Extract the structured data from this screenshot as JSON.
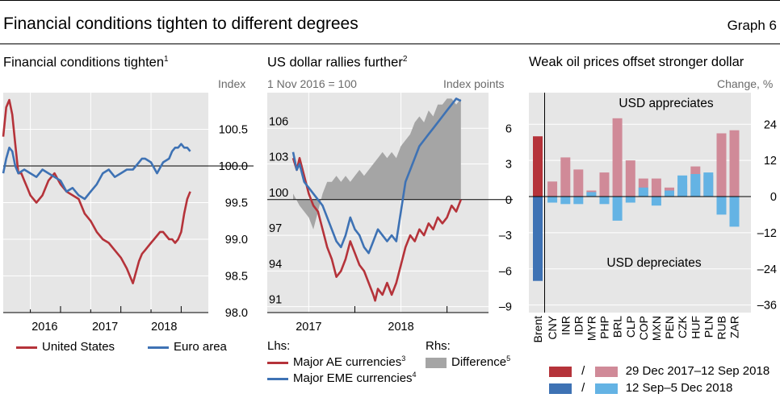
{
  "header": {
    "title": "Financial conditions tighten to different degrees",
    "graph_no": "Graph 6"
  },
  "colors": {
    "red": "#b5333a",
    "blue": "#3e72b4",
    "pink": "#d08a98",
    "lightblue": "#64b3e4",
    "grey": "#a5a5a5",
    "bg": "#e6e6e6"
  },
  "chart_data": [
    {
      "type": "line",
      "title": "Financial conditions tighten",
      "title_note": "1",
      "unit_label": "Index",
      "x_ticks": [
        "2016",
        "2017",
        "2018"
      ],
      "y_ticks": [
        "100.5",
        "100.0",
        "99.5",
        "99.0",
        "98.5",
        "98.0"
      ],
      "y_tick_values": [
        100.5,
        100.0,
        99.5,
        99.0,
        98.5,
        98.0
      ],
      "ylim": [
        98.0,
        101.0
      ],
      "xlim": [
        2015.55,
        2018.95
      ],
      "series": [
        {
          "name": "United States",
          "color": "#b5333a",
          "x": [
            2015.55,
            2015.6,
            2015.65,
            2015.7,
            2015.75,
            2015.8,
            2015.85,
            2015.9,
            2015.95,
            2016.0,
            2016.1,
            2016.2,
            2016.3,
            2016.4,
            2016.5,
            2016.55,
            2016.6,
            2016.7,
            2016.8,
            2016.9,
            2017.0,
            2017.1,
            2017.2,
            2017.3,
            2017.4,
            2017.5,
            2017.6,
            2017.7,
            2017.8,
            2017.85,
            2017.9,
            2017.95,
            2018.0,
            2018.05,
            2018.1,
            2018.15,
            2018.2,
            2018.25,
            2018.3,
            2018.35,
            2018.4,
            2018.45,
            2018.5,
            2018.55,
            2018.6,
            2018.65
          ],
          "values": [
            100.4,
            100.8,
            100.9,
            100.7,
            100.3,
            99.9,
            99.9,
            99.8,
            99.7,
            99.6,
            99.5,
            99.6,
            99.8,
            99.9,
            99.75,
            99.7,
            99.65,
            99.6,
            99.55,
            99.35,
            99.25,
            99.1,
            99.0,
            98.95,
            98.85,
            98.75,
            98.6,
            98.4,
            98.7,
            98.8,
            98.85,
            98.9,
            98.95,
            99.0,
            99.05,
            99.1,
            99.1,
            99.05,
            99.0,
            99.0,
            98.95,
            99.0,
            99.1,
            99.35,
            99.55,
            99.65
          ]
        },
        {
          "name": "Euro area",
          "color": "#3e72b4",
          "x": [
            2015.55,
            2015.6,
            2015.65,
            2015.7,
            2015.75,
            2015.8,
            2015.9,
            2016.0,
            2016.1,
            2016.2,
            2016.3,
            2016.4,
            2016.5,
            2016.6,
            2016.7,
            2016.8,
            2016.9,
            2017.0,
            2017.1,
            2017.2,
            2017.3,
            2017.4,
            2017.5,
            2017.6,
            2017.7,
            2017.8,
            2017.85,
            2017.9,
            2018.0,
            2018.1,
            2018.2,
            2018.3,
            2018.35,
            2018.4,
            2018.45,
            2018.5,
            2018.55,
            2018.6,
            2018.65
          ],
          "values": [
            99.9,
            100.1,
            100.25,
            100.2,
            100.0,
            99.9,
            99.95,
            99.9,
            99.85,
            99.95,
            99.9,
            99.85,
            99.8,
            99.65,
            99.7,
            99.6,
            99.55,
            99.65,
            99.75,
            99.9,
            99.95,
            99.85,
            99.9,
            99.95,
            99.95,
            100.05,
            100.1,
            100.1,
            100.05,
            99.9,
            100.05,
            100.1,
            100.2,
            100.25,
            100.25,
            100.3,
            100.25,
            100.25,
            100.2
          ]
        }
      ]
    },
    {
      "type": "line",
      "title": "US dollar rallies further",
      "title_note": "2",
      "base_label": "1 Nov 2016 = 100",
      "unit_label": "Index points",
      "x_ticks": [
        "2017",
        "2018"
      ],
      "y_left_ticks": [
        "106",
        "103",
        "100",
        "97",
        "94",
        "91"
      ],
      "y_left_values": [
        106,
        103,
        100,
        97,
        94,
        91
      ],
      "y_right_ticks": [
        "6",
        "3",
        "0",
        "–3",
        "–6",
        "–9"
      ],
      "y_right_values": [
        6,
        3,
        0,
        -3,
        -6,
        -9
      ],
      "ylim_left": [
        90.5,
        109.0
      ],
      "ylim_right": [
        -9.5,
        9.0
      ],
      "xlim": [
        2016.55,
        2018.95
      ],
      "lhs_label": "Lhs:",
      "rhs_label": "Rhs:",
      "series": [
        {
          "name": "Major AE currencies",
          "note": "3",
          "axis": "left",
          "color": "#b5333a",
          "x": [
            2016.83,
            2016.87,
            2016.9,
            2016.95,
            2017.0,
            2017.05,
            2017.1,
            2017.15,
            2017.2,
            2017.25,
            2017.3,
            2017.35,
            2017.4,
            2017.45,
            2017.5,
            2017.55,
            2017.6,
            2017.65,
            2017.7,
            2017.72,
            2017.75,
            2017.8,
            2017.85,
            2017.9,
            2017.95,
            2018.0,
            2018.05,
            2018.1,
            2018.15,
            2018.2,
            2018.25,
            2018.3,
            2018.35,
            2018.4,
            2018.45,
            2018.5,
            2018.55,
            2018.6,
            2018.65
          ],
          "values": [
            103.5,
            102.5,
            103.5,
            102.0,
            100.5,
            99.5,
            99.0,
            97.5,
            96.0,
            95.0,
            93.5,
            94.0,
            95.0,
            96.5,
            95.5,
            94.5,
            94.0,
            93.0,
            92.0,
            91.5,
            92.5,
            92.0,
            93.0,
            92.0,
            93.0,
            94.5,
            96.0,
            97.0,
            96.5,
            97.5,
            97.0,
            98.0,
            97.5,
            98.5,
            98.0,
            98.5,
            99.5,
            99.0,
            100.0
          ]
        },
        {
          "name": "Major EME currencies",
          "note": "4",
          "axis": "left",
          "color": "#3e72b4",
          "x": [
            2016.83,
            2016.87,
            2016.9,
            2016.95,
            2017.0,
            2017.05,
            2017.1,
            2017.15,
            2017.2,
            2017.25,
            2017.3,
            2017.35,
            2017.4,
            2017.45,
            2017.5,
            2017.55,
            2017.6,
            2017.65,
            2017.7,
            2017.75,
            2017.8,
            2017.85,
            2017.9,
            2017.95,
            2018.0,
            2018.05,
            2018.1,
            2018.15,
            2018.2,
            2018.25,
            2018.3,
            2018.35,
            2018.4,
            2018.45,
            2018.5,
            2018.55,
            2018.6,
            2018.65
          ],
          "values": [
            104.0,
            102.5,
            103.0,
            101.5,
            101.0,
            100.5,
            100.0,
            99.5,
            98.5,
            97.5,
            96.5,
            96.0,
            97.0,
            98.5,
            97.5,
            97.0,
            96.0,
            95.5,
            96.5,
            97.5,
            97.0,
            96.5,
            97.0,
            96.5,
            99.0,
            101.5,
            102.5,
            103.5,
            104.5,
            105.0,
            105.5,
            106.0,
            106.5,
            107.0,
            107.5,
            108.0,
            108.5,
            108.3
          ]
        },
        {
          "name": "Difference",
          "note": "5",
          "axis": "right",
          "type": "area",
          "color": "#a5a5a5",
          "x": [
            2016.83,
            2016.9,
            2017.0,
            2017.05,
            2017.1,
            2017.15,
            2017.2,
            2017.25,
            2017.3,
            2017.35,
            2017.4,
            2017.45,
            2017.5,
            2017.55,
            2017.6,
            2017.65,
            2017.7,
            2017.75,
            2017.8,
            2017.85,
            2017.9,
            2017.95,
            2018.0,
            2018.05,
            2018.1,
            2018.15,
            2018.2,
            2018.25,
            2018.3,
            2018.35,
            2018.4,
            2018.45,
            2018.5,
            2018.55,
            2018.6,
            2018.65
          ],
          "values": [
            0.5,
            -0.5,
            -1.5,
            -2.5,
            -1.0,
            0.5,
            1.5,
            1.5,
            2.0,
            1.5,
            2.0,
            1.5,
            2.0,
            2.5,
            2.0,
            2.5,
            3.0,
            3.5,
            4.0,
            3.5,
            4.0,
            3.5,
            4.5,
            5.0,
            5.5,
            6.5,
            7.0,
            6.5,
            7.5,
            7.0,
            8.0,
            8.0,
            8.5,
            8.5,
            8.0,
            8.5
          ]
        }
      ]
    },
    {
      "type": "bar",
      "title": "Weak oil prices offset stronger dollar",
      "unit_label": "Change, %",
      "annotation_top": "USD appreciates",
      "annotation_bottom": "USD depreciates",
      "categories": [
        "Brent",
        "CNY",
        "INR",
        "IDR",
        "MYR",
        "PHP",
        "BRL",
        "CLP",
        "COP",
        "MXN",
        "PEN",
        "CZK",
        "HUF",
        "PLN",
        "RUB",
        "ZAR"
      ],
      "y_ticks": [
        "24",
        "12",
        "0",
        "–12",
        "–24",
        "–36"
      ],
      "y_tick_values": [
        24,
        12,
        0,
        -12,
        -24,
        -36
      ],
      "ylim": [
        -36,
        36
      ],
      "legend": [
        {
          "sep": "/",
          "label": "29 Dec 2017–12 Sep 2018"
        },
        {
          "sep": "/",
          "label": "12 Sep–5 Dec 2018"
        }
      ],
      "series": [
        {
          "name": "29 Dec 2017–12 Sep 2018",
          "values": [
            20,
            5,
            13,
            9,
            2,
            8,
            26,
            12,
            6,
            6,
            3,
            4,
            10,
            7,
            21,
            22
          ]
        },
        {
          "name": "12 Sep–5 Dec 2018",
          "values": [
            -28,
            -2,
            -2.5,
            -2.5,
            1.5,
            -2.5,
            -8,
            -2,
            3,
            -3,
            2,
            7,
            7.5,
            8,
            -6,
            -10
          ]
        }
      ]
    }
  ]
}
